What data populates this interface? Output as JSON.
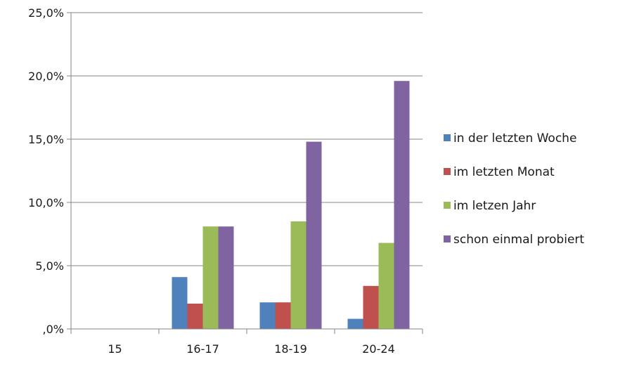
{
  "chart_data": {
    "type": "bar",
    "categories": [
      "15",
      "16-17",
      "18-19",
      "20-24"
    ],
    "series": [
      {
        "name": "in der letzten Woche",
        "color": "#4f81bd",
        "values": [
          0,
          4.1,
          2.1,
          0.8
        ]
      },
      {
        "name": "im letzten Monat",
        "color": "#c0504d",
        "values": [
          0,
          2.0,
          2.1,
          3.4
        ]
      },
      {
        "name": "im letzen Jahr",
        "color": "#9bbb59",
        "values": [
          0,
          8.1,
          8.5,
          6.8
        ]
      },
      {
        "name": "schon einmal probiert",
        "color": "#8064a2",
        "values": [
          0,
          8.1,
          14.8,
          19.6
        ]
      }
    ],
    "title": "",
    "xlabel": "",
    "ylabel": "",
    "ylim": [
      0,
      25
    ],
    "yticks": [
      0,
      5,
      10,
      15,
      20,
      25
    ],
    "ytick_labels": [
      ",0%",
      "5,0%",
      "10,0%",
      "15,0%",
      "20,0%",
      "25,0%"
    ],
    "grid": true,
    "legend_position": "right"
  }
}
